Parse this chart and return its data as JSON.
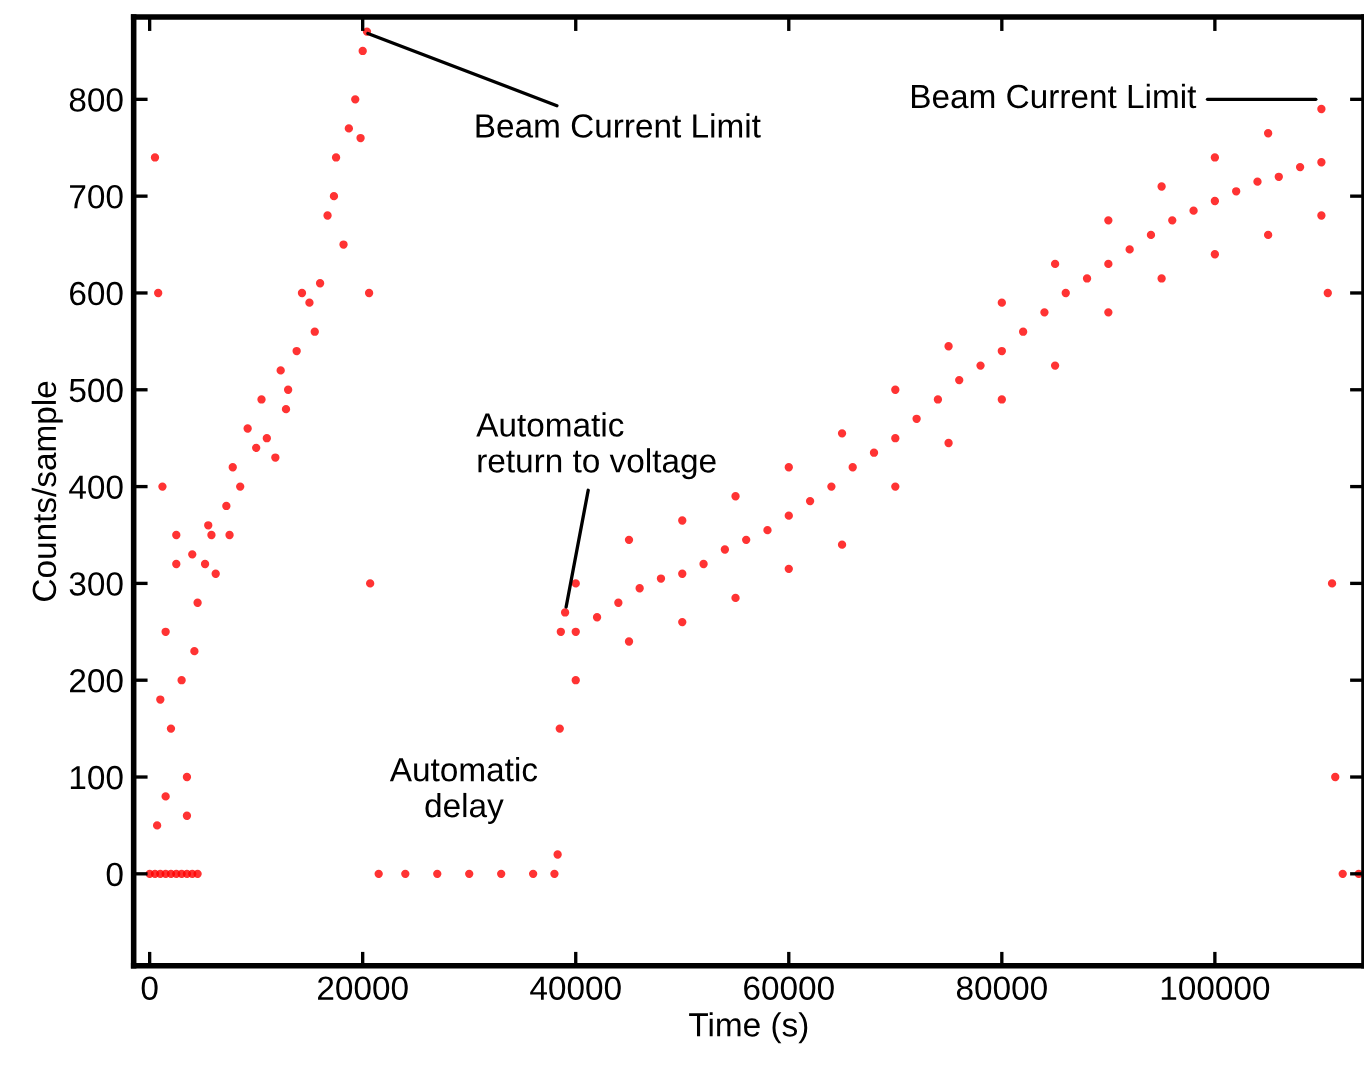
{
  "chart_data": {
    "type": "scatter",
    "xlabel": "Time (s)",
    "ylabel": "Counts/sample",
    "xlim": [
      -1500,
      114000
    ],
    "xticks": [
      0,
      20000,
      40000,
      60000,
      80000,
      100000
    ],
    "ylim": [
      -95,
      885
    ],
    "yticks": [
      0,
      100,
      200,
      300,
      400,
      500,
      600,
      700,
      800
    ],
    "grid": false,
    "marker": "circle",
    "series": [
      {
        "color": "#ff0000",
        "x": [
          0,
          500,
          1000,
          1500,
          2000,
          2500,
          3000,
          3500,
          4000,
          4500,
          500,
          800,
          1200,
          1500,
          2000,
          2500,
          3000,
          3500,
          4000,
          4500,
          700,
          1000,
          1500,
          2500,
          3500,
          4200,
          5200,
          5800,
          6200,
          5500,
          7200,
          7800,
          8500,
          7500,
          9200,
          10000,
          11000,
          11800,
          10500,
          12300,
          13000,
          13800,
          12800,
          14300,
          15000,
          16000,
          15500,
          16700,
          17300,
          18200,
          17500,
          18700,
          19300,
          19800,
          20000,
          20400,
          20600,
          20700,
          21500,
          24000,
          27000,
          30000,
          33000,
          36000,
          38000,
          38300,
          38500,
          38600,
          39000,
          40000,
          42000,
          44000,
          46000,
          48000,
          50000,
          52000,
          54000,
          56000,
          58000,
          60000,
          62000,
          64000,
          66000,
          68000,
          70000,
          72000,
          74000,
          76000,
          78000,
          80000,
          82000,
          84000,
          86000,
          88000,
          90000,
          92000,
          94000,
          96000,
          98000,
          100000,
          102000,
          104000,
          106000,
          108000,
          110000,
          110600,
          111000,
          111300,
          112000,
          113500,
          40000,
          45000,
          50000,
          55000,
          60000,
          65000,
          70000,
          75000,
          80000,
          85000,
          90000,
          95000,
          100000,
          105000,
          110000,
          40000,
          45000,
          50000,
          55000,
          60000,
          65000,
          70000,
          75000,
          80000,
          85000,
          90000,
          95000,
          100000,
          105000,
          110000
        ],
        "values": [
          0,
          0,
          0,
          0,
          0,
          0,
          0,
          0,
          0,
          0,
          740,
          600,
          400,
          250,
          150,
          320,
          200,
          100,
          330,
          280,
          50,
          180,
          80,
          350,
          60,
          230,
          320,
          350,
          310,
          360,
          380,
          420,
          400,
          350,
          460,
          440,
          450,
          430,
          490,
          520,
          500,
          540,
          480,
          600,
          590,
          610,
          560,
          680,
          700,
          650,
          740,
          770,
          800,
          760,
          850,
          870,
          600,
          300,
          0,
          0,
          0,
          0,
          0,
          0,
          0,
          20,
          150,
          250,
          270,
          250,
          265,
          280,
          295,
          305,
          310,
          320,
          335,
          345,
          355,
          370,
          385,
          400,
          420,
          435,
          450,
          470,
          490,
          510,
          525,
          540,
          560,
          580,
          600,
          615,
          630,
          645,
          660,
          675,
          685,
          695,
          705,
          715,
          720,
          730,
          735,
          600,
          300,
          100,
          0,
          0,
          300,
          345,
          365,
          390,
          420,
          455,
          500,
          545,
          590,
          630,
          675,
          710,
          740,
          765,
          790,
          200,
          240,
          260,
          285,
          315,
          340,
          400,
          445,
          490,
          525,
          580,
          615,
          640,
          660,
          680
        ]
      }
    ],
    "annotations": [
      {
        "text": "Beam Current Limit",
        "x": 20000,
        "y": 870
      },
      {
        "text": "Beam Current Limit",
        "x": 110000,
        "y": 800
      },
      {
        "text": "Automatic\nreturn to voltage",
        "x": 39000,
        "y": 270
      },
      {
        "text": "Automatic\ndelay",
        "x": 29500,
        "y": 0
      }
    ]
  }
}
